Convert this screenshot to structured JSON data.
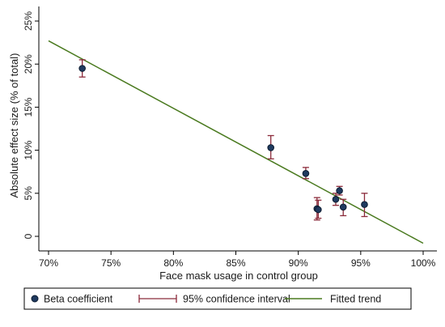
{
  "chart_data": {
    "type": "scatter",
    "xlabel": "Face mask usage in control group",
    "ylabel": "Absolute effect size (% of total)",
    "xlim": [
      70,
      100
    ],
    "ylim": [
      -0.5,
      25.5
    ],
    "x_ticks": [
      70,
      75,
      80,
      85,
      90,
      95,
      100
    ],
    "x_tick_labels": [
      "70%",
      "75%",
      "80%",
      "85%",
      "90%",
      "95%",
      "100%"
    ],
    "y_ticks": [
      0,
      5,
      10,
      15,
      20,
      25
    ],
    "y_tick_labels": [
      "0",
      "5%",
      "10%",
      "15%",
      "20%",
      "25%"
    ],
    "grid": false,
    "legend_position": "bottom",
    "colors": {
      "point": "#1f3a5f",
      "point_edge": "#0d1c30",
      "ci": "#8b2a3a",
      "trend": "#4a7a1f",
      "axis": "#000000"
    },
    "series": [
      {
        "name": "Beta coefficient",
        "kind": "points",
        "points": [
          {
            "x": 72.7,
            "y": 19.5,
            "lo": 18.5,
            "hi": 20.5
          },
          {
            "x": 87.8,
            "y": 10.3,
            "lo": 9.0,
            "hi": 11.7
          },
          {
            "x": 90.6,
            "y": 7.3,
            "lo": 6.7,
            "hi": 8.0
          },
          {
            "x": 91.5,
            "y": 3.2,
            "lo": 1.9,
            "hi": 4.5
          },
          {
            "x": 91.6,
            "y": 3.1,
            "lo": 2.1,
            "hi": 4.2
          },
          {
            "x": 93.0,
            "y": 4.3,
            "lo": 3.6,
            "hi": 5.0
          },
          {
            "x": 93.3,
            "y": 5.3,
            "lo": 4.8,
            "hi": 5.8
          },
          {
            "x": 93.6,
            "y": 3.4,
            "lo": 2.4,
            "hi": 4.3
          },
          {
            "x": 95.3,
            "y": 3.7,
            "lo": 2.3,
            "hi": 5.0
          }
        ]
      },
      {
        "name": "95% confidence interval",
        "kind": "errorbars"
      },
      {
        "name": "Fitted trend",
        "kind": "line",
        "x": [
          70,
          100
        ],
        "y": [
          22.7,
          -0.8
        ]
      }
    ]
  }
}
